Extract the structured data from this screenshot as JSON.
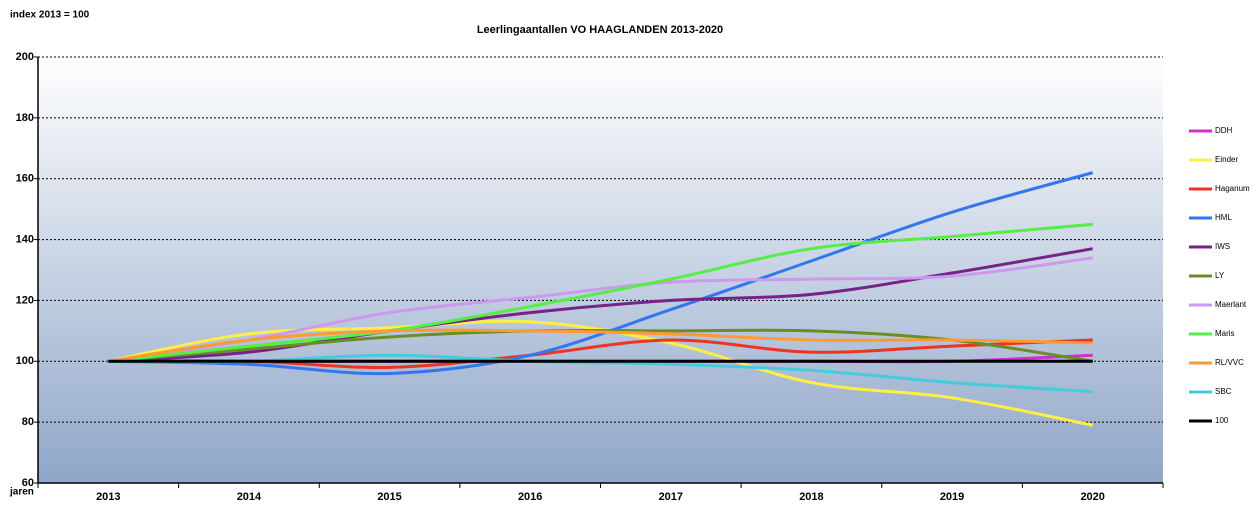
{
  "chart_data": {
    "type": "line",
    "title": "Leerlingaantallen VO HAAGLANDEN 2013-2020",
    "subtitle": "index 2013 = 100",
    "x_label": "jaren",
    "categories": [
      "2013",
      "2014",
      "2015",
      "2016",
      "2017",
      "2018",
      "2019",
      "2020"
    ],
    "ylim": [
      60,
      200
    ],
    "yticks": [
      60,
      80,
      100,
      120,
      140,
      160,
      180,
      200
    ],
    "grid": true,
    "legend": "right",
    "series": [
      {
        "name": "DDH",
        "color": "#cc33cc",
        "values": [
          100,
          100,
          100,
          100,
          100,
          100,
          100,
          102
        ]
      },
      {
        "name": "Einder",
        "color": "#ffee44",
        "values": [
          100,
          109,
          111,
          113,
          106,
          93,
          88,
          79
        ]
      },
      {
        "name": "Haganum",
        "color": "#ee3322",
        "values": [
          100,
          100,
          98,
          102,
          107,
          103,
          105,
          107
        ]
      },
      {
        "name": "HML",
        "color": "#3377ee",
        "values": [
          100,
          99,
          96,
          102,
          117,
          133,
          149,
          162
        ]
      },
      {
        "name": "IWS",
        "color": "#772288",
        "values": [
          100,
          103,
          110,
          116,
          120,
          122,
          129,
          137
        ]
      },
      {
        "name": "LY",
        "color": "#6b8e23",
        "values": [
          100,
          104,
          108,
          110,
          110,
          110,
          107,
          100
        ]
      },
      {
        "name": "Maerlant",
        "color": "#cc99ee",
        "values": [
          100,
          107,
          116,
          121,
          126,
          127,
          128,
          134
        ]
      },
      {
        "name": "Maris",
        "color": "#55ee44",
        "values": [
          100,
          105,
          110,
          118,
          127,
          137,
          141,
          145
        ]
      },
      {
        "name": "RL/VVC",
        "color": "#ff9933",
        "values": [
          100,
          107,
          110,
          110,
          109,
          107,
          107,
          106
        ]
      },
      {
        "name": "SBC",
        "color": "#44ccdd",
        "values": [
          100,
          100,
          102,
          100,
          99,
          97,
          93,
          90
        ]
      },
      {
        "name": "100",
        "color": "#000000",
        "values": [
          100,
          100,
          100,
          100,
          100,
          100,
          100,
          100
        ]
      }
    ]
  }
}
